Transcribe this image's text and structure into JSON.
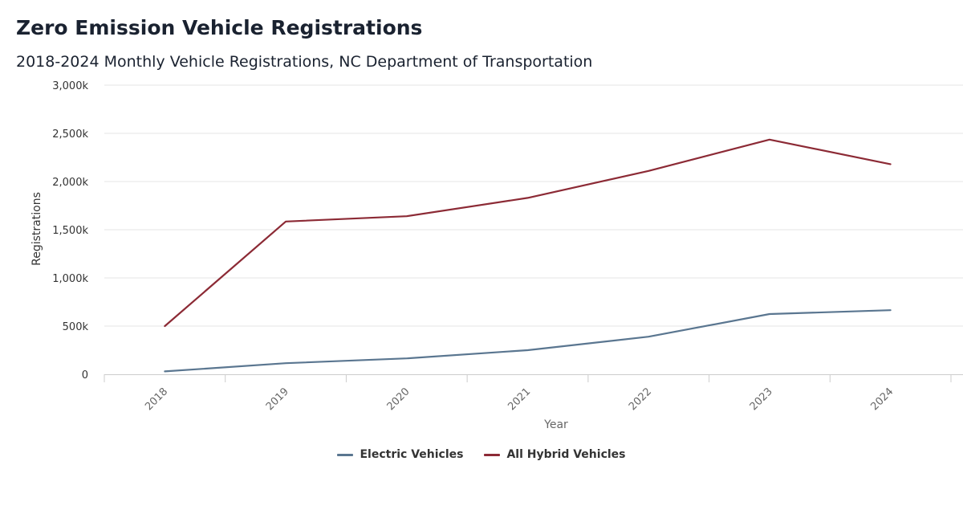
{
  "chart_data": {
    "type": "line",
    "title": "Zero Emission Vehicle Registrations",
    "subtitle": "2018-2024 Monthly Vehicle Registrations, NC Department of Transportation",
    "xlabel": "Year",
    "ylabel": "Registrations",
    "categories": [
      "2018",
      "2019",
      "2020",
      "2021",
      "2022",
      "2023",
      "2024"
    ],
    "ylim": [
      0,
      3000
    ],
    "yticks": [
      0,
      500,
      1000,
      1500,
      2000,
      2500,
      3000
    ],
    "ytick_labels": [
      "0",
      "500k",
      "1,000k",
      "1,500k",
      "2,000k",
      "2,500k",
      "3,000k"
    ],
    "grid": true,
    "legend_position": "bottom-center",
    "series": [
      {
        "name": "Electric Vehicles",
        "color": "#5a7690",
        "values": [
          30,
          115,
          165,
          250,
          390,
          625,
          665
        ]
      },
      {
        "name": "All Hybrid Vehicles",
        "color": "#8c2a35",
        "values": [
          500,
          1585,
          1640,
          1830,
          2110,
          2435,
          2180
        ]
      }
    ]
  }
}
